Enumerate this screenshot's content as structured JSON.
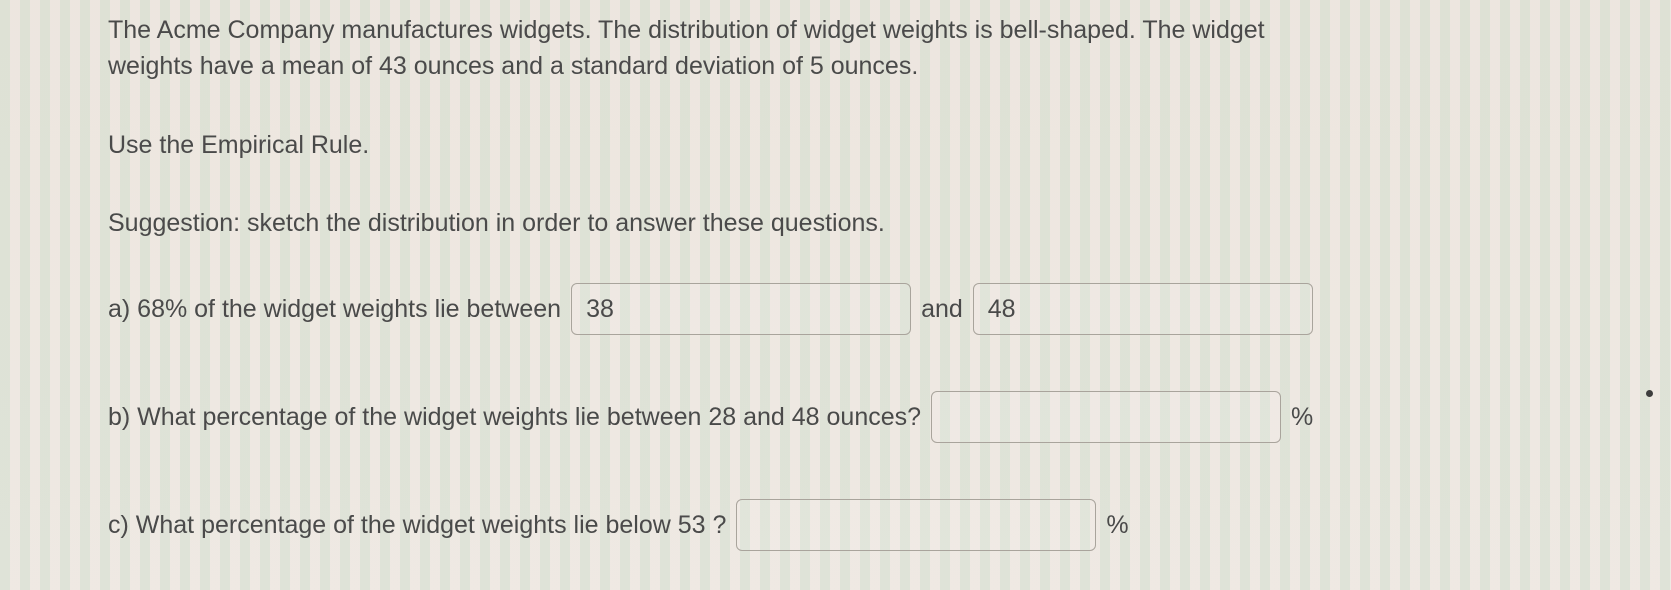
{
  "intro": {
    "line1": "The Acme Company manufactures widgets. The distribution of widget weights is bell-shaped. The widget",
    "line2": "weights have a mean of 43 ounces and a standard deviation of 5 ounces."
  },
  "instruction": "Use the Empirical Rule.",
  "suggestion": "Suggestion: sketch the distribution in order to answer these questions.",
  "qa": {
    "prefix": "a) 68% of the widget weights lie between",
    "value1": "38",
    "joiner": "and",
    "value2": "48"
  },
  "qb": {
    "text": "b) What percentage of the widget weights lie between 28 and 48 ounces?",
    "value": "",
    "unit": "%"
  },
  "qc": {
    "text": "c) What percentage of the widget weights lie below 53 ?",
    "value": "",
    "unit": "%"
  },
  "colors": {
    "text": "#4a4a4a",
    "border": "#a9a49c",
    "bg_base": "#ece5de",
    "stripe": "#aad2b4"
  },
  "font_size_pt": 19
}
